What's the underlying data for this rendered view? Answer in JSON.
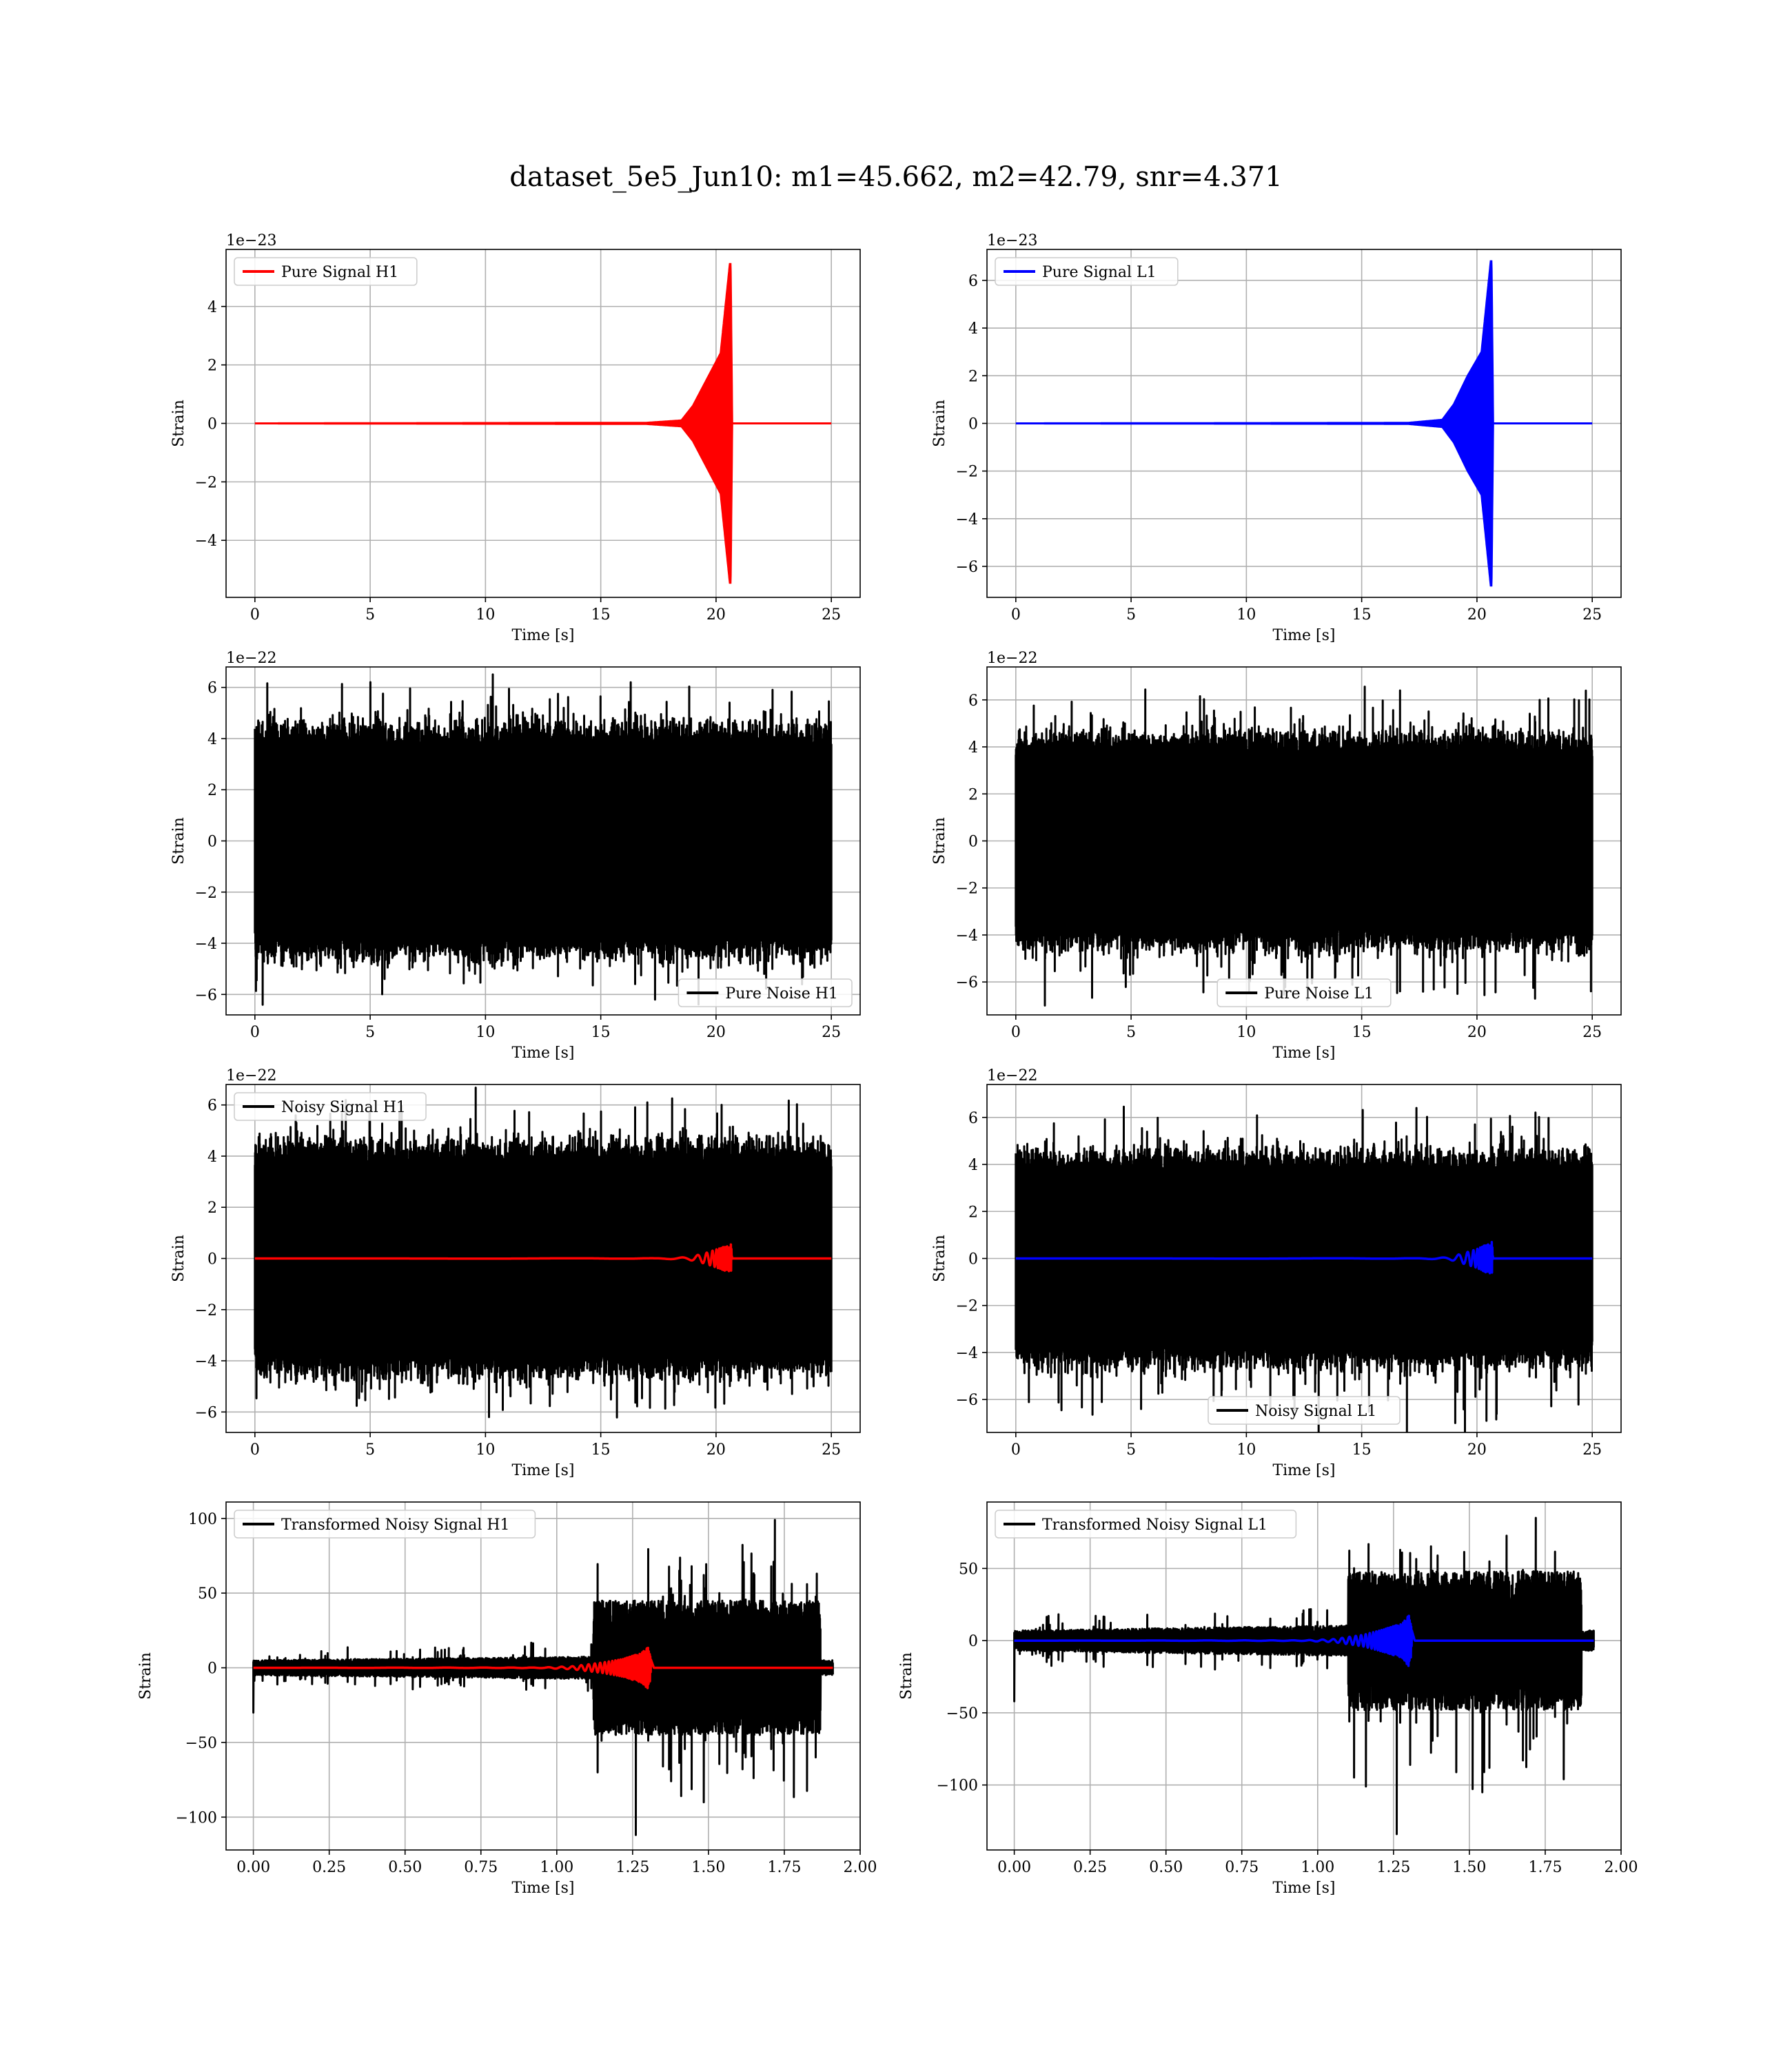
{
  "figure": {
    "title": "dataset_5e5_Jun10: m1=45.662, m2=42.79, snr=4.371"
  },
  "chart_data": [
    {
      "type": "line",
      "panel": "pure-signal-h1",
      "title": "",
      "xlabel": "Time [s]",
      "ylabel": "Strain",
      "offset_text": "1e−23",
      "xlim": [
        -1.25,
        26.25
      ],
      "ylim": [
        -5.95,
        5.95
      ],
      "xticks": [
        0,
        5,
        10,
        15,
        20,
        25
      ],
      "yticks": [
        -4,
        -2,
        0,
        2,
        4
      ],
      "grid": true,
      "legend": "top-left",
      "series": [
        {
          "name": "Pure Signal H1",
          "color": "#ff0000",
          "kind": "chirp",
          "x": [
            0,
            17.0,
            18.5,
            19.0,
            19.6,
            20.2,
            20.6,
            20.63,
            20.7,
            25
          ],
          "y": [
            0,
            0.02,
            0.1,
            0.6,
            1.5,
            2.4,
            5.45,
            5.45,
            0,
            0
          ]
        }
      ]
    },
    {
      "type": "line",
      "panel": "pure-signal-l1",
      "title": "",
      "xlabel": "Time [s]",
      "ylabel": "Strain",
      "offset_text": "1e−23",
      "xlim": [
        -1.25,
        26.25
      ],
      "ylim": [
        -7.3,
        7.3
      ],
      "xticks": [
        0,
        5,
        10,
        15,
        20,
        25
      ],
      "yticks": [
        -6,
        -4,
        -2,
        0,
        2,
        4,
        6
      ],
      "grid": true,
      "legend": "top-left",
      "series": [
        {
          "name": "Pure Signal L1",
          "color": "#0000ff",
          "kind": "chirp",
          "x": [
            0,
            17.0,
            18.5,
            19.0,
            19.6,
            20.2,
            20.6,
            20.63,
            20.7,
            25
          ],
          "y": [
            0,
            0.02,
            0.15,
            0.8,
            2.0,
            3.0,
            6.8,
            6.8,
            0,
            0
          ]
        }
      ]
    },
    {
      "type": "line",
      "panel": "pure-noise-h1",
      "title": "",
      "xlabel": "Time [s]",
      "ylabel": "Strain",
      "offset_text": "1e−22",
      "xlim": [
        -1.25,
        26.25
      ],
      "ylim": [
        -6.8,
        6.8
      ],
      "xticks": [
        0,
        5,
        10,
        15,
        20,
        25
      ],
      "yticks": [
        -6,
        -4,
        -2,
        0,
        2,
        4,
        6
      ],
      "grid": true,
      "legend": "bottom-right",
      "series": [
        {
          "name": "Pure Noise H1",
          "color": "#000000",
          "kind": "noise",
          "x_range": [
            0,
            25
          ],
          "band": 3.5,
          "peak_max": 6.2,
          "peak_min": -6.2
        }
      ]
    },
    {
      "type": "line",
      "panel": "pure-noise-l1",
      "title": "",
      "xlabel": "Time [s]",
      "ylabel": "Strain",
      "offset_text": "1e−22",
      "xlim": [
        -1.25,
        26.25
      ],
      "ylim": [
        -7.4,
        7.4
      ],
      "xticks": [
        0,
        5,
        10,
        15,
        20,
        25
      ],
      "yticks": [
        -6,
        -4,
        -2,
        0,
        2,
        4,
        6
      ],
      "grid": true,
      "legend": "bottom-center",
      "series": [
        {
          "name": "Pure Noise L1",
          "color": "#000000",
          "kind": "noise",
          "x_range": [
            0,
            25
          ],
          "band": 3.5,
          "peak_max": 6.4,
          "peak_min": -7.0
        }
      ]
    },
    {
      "type": "line",
      "panel": "noisy-signal-h1",
      "title": "",
      "xlabel": "Time [s]",
      "ylabel": "Strain",
      "offset_text": "1e−22",
      "xlim": [
        -1.25,
        26.25
      ],
      "ylim": [
        -6.8,
        6.8
      ],
      "xticks": [
        0,
        5,
        10,
        15,
        20,
        25
      ],
      "yticks": [
        -6,
        -4,
        -2,
        0,
        2,
        4,
        6
      ],
      "grid": true,
      "legend": "top-left",
      "series": [
        {
          "name": "Noisy Signal H1",
          "color": "#000000",
          "kind": "noise",
          "x_range": [
            0,
            25
          ],
          "band": 3.5,
          "peak_max": 6.1,
          "peak_min": -6.2
        },
        {
          "name": "",
          "color": "#ff0000",
          "kind": "chirp",
          "x": [
            0,
            17.5,
            18.8,
            19.5,
            20.0,
            20.6,
            20.65,
            20.7,
            25
          ],
          "y": [
            0,
            0.01,
            0.05,
            0.2,
            0.35,
            0.55,
            0.55,
            0,
            0
          ]
        }
      ]
    },
    {
      "type": "line",
      "panel": "noisy-signal-l1",
      "title": "",
      "xlabel": "Time [s]",
      "ylabel": "Strain",
      "offset_text": "1e−22",
      "xlim": [
        -1.25,
        26.25
      ],
      "ylim": [
        -7.4,
        7.4
      ],
      "xticks": [
        0,
        5,
        10,
        15,
        20,
        25
      ],
      "yticks": [
        -6,
        -4,
        -2,
        0,
        2,
        4,
        6
      ],
      "grid": true,
      "legend": "bottom-center",
      "series": [
        {
          "name": "Noisy Signal L1",
          "color": "#000000",
          "kind": "noise",
          "x_range": [
            0,
            25
          ],
          "band": 3.5,
          "peak_max": 6.4,
          "peak_min": -7.0
        },
        {
          "name": "",
          "color": "#0000ff",
          "kind": "chirp",
          "x": [
            0,
            17.5,
            18.8,
            19.5,
            20.0,
            20.6,
            20.65,
            20.7,
            25
          ],
          "y": [
            0,
            0.01,
            0.05,
            0.25,
            0.4,
            0.7,
            0.7,
            0,
            0
          ]
        }
      ]
    },
    {
      "type": "line",
      "panel": "transformed-noisy-signal-h1",
      "title": "",
      "xlabel": "Time [s]",
      "ylabel": "Strain",
      "offset_text": "",
      "xlim": [
        -0.09,
        2.0
      ],
      "ylim": [
        -122,
        111
      ],
      "xticks": [
        0.0,
        0.25,
        0.5,
        0.75,
        1.0,
        1.25,
        1.5,
        1.75,
        2.0
      ],
      "xtick_labels": [
        "0.00",
        "0.25",
        "0.50",
        "0.75",
        "1.00",
        "1.25",
        "1.50",
        "1.75",
        "2.00"
      ],
      "yticks": [
        -100,
        -50,
        0,
        50,
        100
      ],
      "grid": true,
      "legend": "top-left",
      "series": [
        {
          "name": "Transformed Noisy Signal H1",
          "color": "#000000",
          "kind": "transformed",
          "x_range": [
            0,
            1.91
          ],
          "quiet_end": 1.12,
          "loud_end": 1.87,
          "quiet_band": 5,
          "loud_band": 45,
          "peak_max": 99,
          "peak_min": -112,
          "start_spike": -30
        },
        {
          "name": "",
          "color": "#ff0000",
          "kind": "chirp",
          "x": [
            0,
            0.95,
            1.05,
            1.15,
            1.22,
            1.28,
            1.3,
            1.32,
            1.91
          ],
          "y": [
            0,
            0.2,
            1.0,
            3.5,
            6.0,
            10.0,
            14.0,
            0,
            0
          ]
        }
      ]
    },
    {
      "type": "line",
      "panel": "transformed-noisy-signal-l1",
      "title": "",
      "xlabel": "Time [s]",
      "ylabel": "Strain",
      "offset_text": "",
      "xlim": [
        -0.09,
        2.0
      ],
      "ylim": [
        -145,
        96
      ],
      "xticks": [
        0.0,
        0.25,
        0.5,
        0.75,
        1.0,
        1.25,
        1.5,
        1.75,
        2.0
      ],
      "xtick_labels": [
        "0.00",
        "0.25",
        "0.50",
        "0.75",
        "1.00",
        "1.25",
        "1.50",
        "1.75",
        "2.00"
      ],
      "yticks": [
        -100,
        -50,
        0,
        50
      ],
      "grid": true,
      "legend": "top-left",
      "series": [
        {
          "name": "Transformed Noisy Signal L1",
          "color": "#000000",
          "kind": "transformed",
          "x_range": [
            0,
            1.91
          ],
          "quiet_end": 1.1,
          "loud_end": 1.87,
          "quiet_band": 7,
          "loud_band": 48,
          "peak_max": 85,
          "peak_min": -134,
          "start_spike": -42
        },
        {
          "name": "",
          "color": "#0000ff",
          "kind": "chirp",
          "x": [
            0,
            0.95,
            1.05,
            1.15,
            1.22,
            1.28,
            1.3,
            1.32,
            1.91
          ],
          "y": [
            0,
            0.2,
            1.0,
            4.0,
            8.0,
            12.0,
            18.0,
            0,
            0
          ]
        }
      ]
    }
  ]
}
